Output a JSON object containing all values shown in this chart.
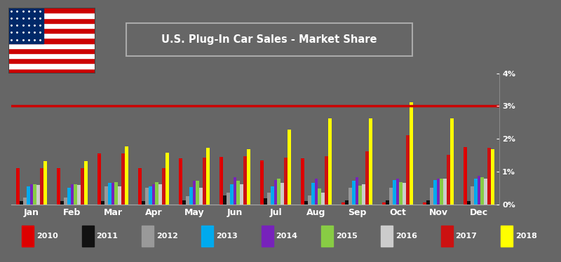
{
  "title": "U.S. Plug-In Car Sales - Market Share",
  "background_color": "#666666",
  "plot_bg_color": "#666666",
  "months": [
    "Jan",
    "Feb",
    "Mar",
    "Apr",
    "May",
    "Jun",
    "Jul",
    "Aug",
    "Sep",
    "Oct",
    "Nov",
    "Dec"
  ],
  "years": [
    "2010",
    "2011",
    "2012",
    "2013",
    "2014",
    "2015",
    "2016",
    "2017",
    "2018"
  ],
  "colors": {
    "2010": "#dd0000",
    "2011": "#111111",
    "2012": "#999999",
    "2013": "#00aaee",
    "2014": "#7722bb",
    "2015": "#88cc44",
    "2016": "#cccccc",
    "2017": "#cc1111",
    "2018": "#ffff00"
  },
  "data": {
    "2010": [
      1.1,
      1.1,
      1.55,
      1.1,
      1.4,
      1.45,
      1.35,
      1.4,
      0.05,
      0.05,
      0.05,
      1.75
    ],
    "2011": [
      0.1,
      0.1,
      0.1,
      0.1,
      0.12,
      0.28,
      0.18,
      0.1,
      0.12,
      0.12,
      0.12,
      0.1
    ],
    "2012": [
      0.2,
      0.2,
      0.55,
      0.5,
      0.25,
      0.35,
      0.35,
      0.28,
      0.5,
      0.5,
      0.5,
      0.55
    ],
    "2013": [
      0.55,
      0.5,
      0.65,
      0.55,
      0.52,
      0.62,
      0.55,
      0.65,
      0.72,
      0.75,
      0.75,
      0.78
    ],
    "2014": [
      0.62,
      0.62,
      0.65,
      0.62,
      0.72,
      0.82,
      0.75,
      0.78,
      0.82,
      0.78,
      0.78,
      0.88
    ],
    "2015": [
      0.62,
      0.62,
      0.68,
      0.68,
      0.72,
      0.72,
      0.78,
      0.48,
      0.58,
      0.68,
      0.78,
      0.82
    ],
    "2016": [
      0.6,
      0.6,
      0.55,
      0.62,
      0.5,
      0.62,
      0.65,
      0.35,
      0.62,
      0.65,
      0.78,
      0.78
    ],
    "2017": [
      1.1,
      1.1,
      1.55,
      1.1,
      1.42,
      1.48,
      1.42,
      1.48,
      1.62,
      2.12,
      1.52,
      1.72
    ],
    "2018": [
      1.32,
      1.32,
      1.78,
      1.58,
      1.72,
      1.68,
      2.28,
      2.62,
      2.62,
      3.12,
      2.62,
      1.68
    ]
  },
  "hline_y": 3.0,
  "hline_color": "#cc0000",
  "ylim": [
    0,
    4.0
  ],
  "yticks": [
    0,
    1,
    2,
    3,
    4
  ],
  "ytick_labels": [
    "0%",
    "1%",
    "2%",
    "3%",
    "4%"
  ],
  "title_box_color": "#111111",
  "title_text_color": "#ffffff",
  "inside_color": "#ffffff",
  "evs_color": "#55dd00",
  "small_s_color": "#888888"
}
